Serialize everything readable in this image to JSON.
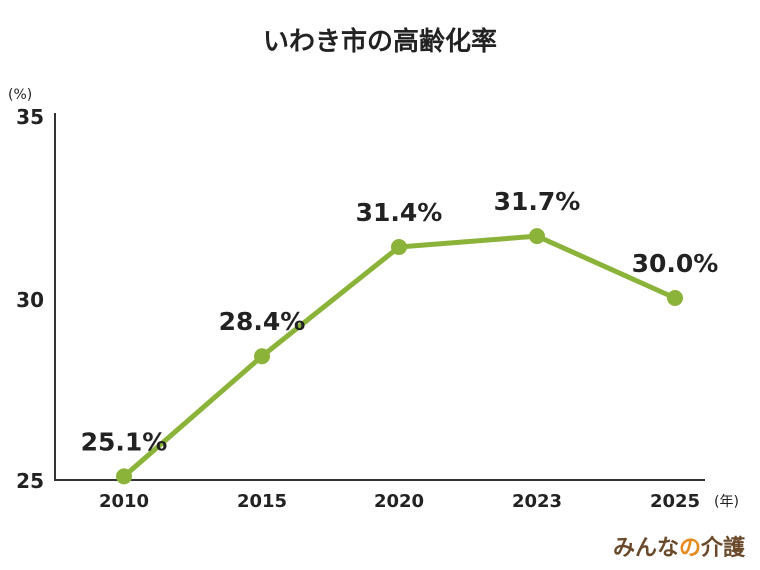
{
  "chart_data": {
    "type": "line",
    "title": "いわき市の高齢化率",
    "y_unit": "(%)",
    "x_unit": "(年)",
    "categories": [
      "2010",
      "2015",
      "2020",
      "2023",
      "2025"
    ],
    "series": [
      {
        "values": [
          25.1,
          28.4,
          31.4,
          31.7,
          30.0
        ]
      }
    ],
    "data_labels": [
      "25.1%",
      "28.4%",
      "31.4%",
      "31.7%",
      "30.0%"
    ],
    "ylim": [
      25,
      35
    ],
    "yticks": [
      "25",
      "30",
      "35"
    ],
    "grid": false,
    "legend": "none",
    "colors": {
      "line": "#8bb33a",
      "axis": "#333333",
      "text": "#222222"
    }
  },
  "brand": {
    "text_part1": "みんな",
    "text_part2": "の",
    "text_part3": "介護",
    "colors": {
      "main": "#6b4a2b",
      "accent": "#e68a1f"
    }
  }
}
